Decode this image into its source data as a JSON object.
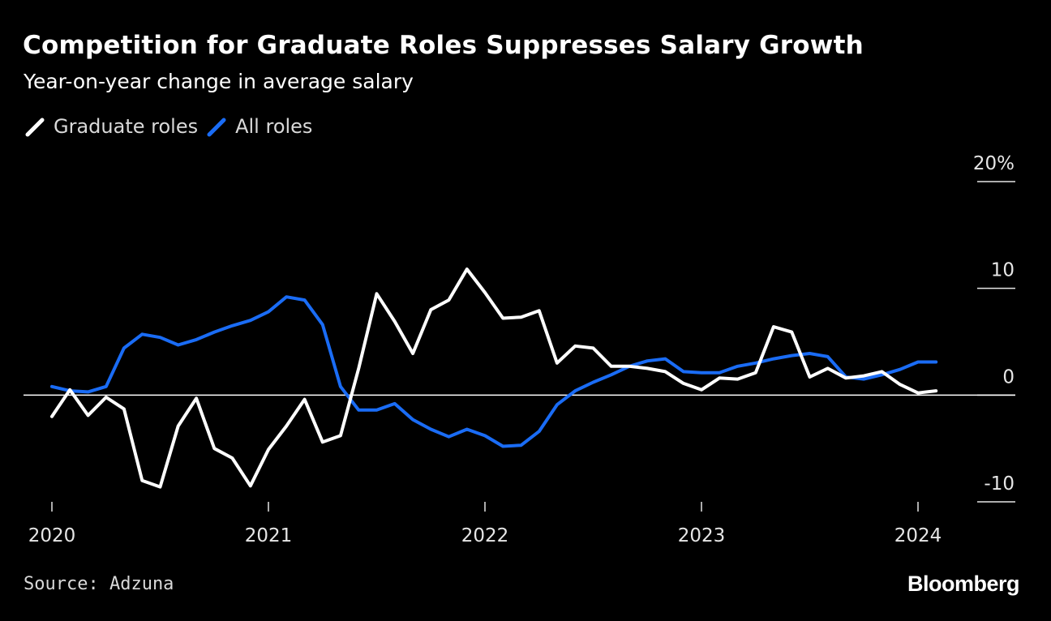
{
  "title": "Competition for Graduate Roles Suppresses Salary Growth",
  "subtitle": "Year-on-year change in average salary",
  "source": "Source: Adzuna",
  "brand": "Bloomberg",
  "colors": {
    "background": "#000000",
    "graduate": "#ffffff",
    "all": "#1a6cf5",
    "zero_line": "#ffffff",
    "text": "#e6e6e6"
  },
  "chart_data": {
    "type": "line",
    "title": "Competition for Graduate Roles Suppresses Salary Growth",
    "subtitle": "Year-on-year change in average salary",
    "xlabel": "",
    "ylabel": "",
    "ylim": [
      -10,
      20
    ],
    "yticks": [
      {
        "value": 20,
        "label": "20%"
      },
      {
        "value": 10,
        "label": "10"
      },
      {
        "value": 0,
        "label": "0"
      },
      {
        "value": -10,
        "label": "-10"
      }
    ],
    "xticks": [
      {
        "value": 2020.0,
        "label": "2020"
      },
      {
        "value": 2021.0,
        "label": "2021"
      },
      {
        "value": 2022.0,
        "label": "2022"
      },
      {
        "value": 2023.0,
        "label": "2023"
      },
      {
        "value": 2024.0,
        "label": "2024"
      }
    ],
    "xlim": [
      2019.75,
      2024.45
    ],
    "grid": false,
    "legend_position": "top-left",
    "series": [
      {
        "name": "Graduate roles",
        "color": "#ffffff",
        "x": [
          2020.0,
          2020.083,
          2020.167,
          2020.25,
          2020.333,
          2020.417,
          2020.5,
          2020.583,
          2020.667,
          2020.75,
          2020.833,
          2020.917,
          2021.0,
          2021.083,
          2021.167,
          2021.25,
          2021.333,
          2021.417,
          2021.5,
          2021.583,
          2021.667,
          2021.75,
          2021.833,
          2021.917,
          2022.0,
          2022.083,
          2022.167,
          2022.25,
          2022.333,
          2022.417,
          2022.5,
          2022.583,
          2022.667,
          2022.75,
          2022.833,
          2022.917,
          2023.0,
          2023.083,
          2023.167,
          2023.25,
          2023.333,
          2023.417,
          2023.5,
          2023.583,
          2023.667,
          2023.75,
          2023.833,
          2023.917,
          2024.0,
          2024.083
        ],
        "values": [
          -2.0,
          0.5,
          -1.9,
          -0.2,
          -1.3,
          -8.0,
          -8.6,
          -2.9,
          -0.3,
          -5.0,
          -5.9,
          -8.5,
          -5.1,
          -2.9,
          -0.4,
          -4.4,
          -3.8,
          2.5,
          9.5,
          6.9,
          3.9,
          8.0,
          8.9,
          11.8,
          9.6,
          7.2,
          7.3,
          7.9,
          3.0,
          4.6,
          4.4,
          2.7,
          2.7,
          2.5,
          2.2,
          1.1,
          0.5,
          1.6,
          1.5,
          2.1,
          6.4,
          5.9,
          1.7,
          2.5,
          1.6,
          1.8,
          2.2,
          1.0,
          0.2,
          0.4
        ]
      },
      {
        "name": "All roles",
        "color": "#1a6cf5",
        "x": [
          2020.0,
          2020.083,
          2020.167,
          2020.25,
          2020.333,
          2020.417,
          2020.5,
          2020.583,
          2020.667,
          2020.75,
          2020.833,
          2020.917,
          2021.0,
          2021.083,
          2021.167,
          2021.25,
          2021.333,
          2021.417,
          2021.5,
          2021.583,
          2021.667,
          2021.75,
          2021.833,
          2021.917,
          2022.0,
          2022.083,
          2022.167,
          2022.25,
          2022.333,
          2022.417,
          2022.5,
          2022.583,
          2022.667,
          2022.75,
          2022.833,
          2022.917,
          2023.0,
          2023.083,
          2023.167,
          2023.25,
          2023.333,
          2023.417,
          2023.5,
          2023.583,
          2023.667,
          2023.75,
          2023.833,
          2023.917,
          2024.0,
          2024.083
        ],
        "values": [
          0.8,
          0.4,
          0.3,
          0.8,
          4.4,
          5.7,
          5.4,
          4.7,
          5.2,
          5.9,
          6.5,
          7.0,
          7.8,
          9.2,
          8.9,
          6.6,
          0.8,
          -1.4,
          -1.4,
          -0.8,
          -2.3,
          -3.2,
          -3.9,
          -3.2,
          -3.8,
          -4.8,
          -4.7,
          -3.4,
          -0.9,
          0.4,
          1.2,
          1.9,
          2.7,
          3.2,
          3.4,
          2.2,
          2.1,
          2.1,
          2.7,
          3.0,
          3.4,
          3.7,
          3.9,
          3.6,
          1.7,
          1.5,
          1.9,
          2.4,
          3.1,
          3.1
        ]
      }
    ]
  }
}
